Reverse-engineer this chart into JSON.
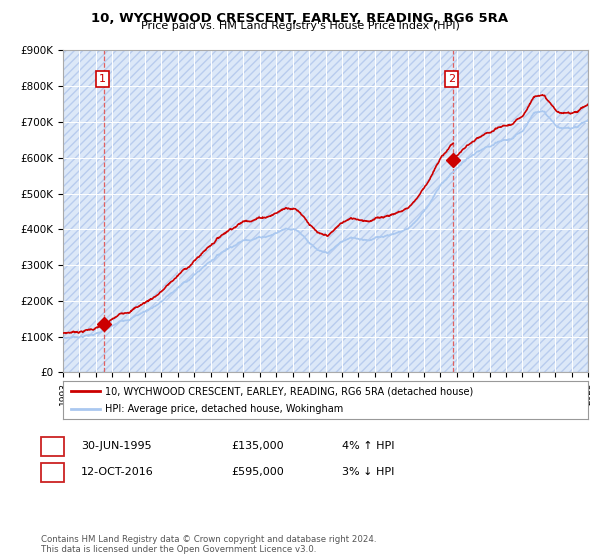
{
  "title": "10, WYCHWOOD CRESCENT, EARLEY, READING, RG6 5RA",
  "subtitle": "Price paid vs. HM Land Registry's House Price Index (HPI)",
  "ylim": [
    0,
    900000
  ],
  "yticks": [
    0,
    100000,
    200000,
    300000,
    400000,
    500000,
    600000,
    700000,
    800000,
    900000
  ],
  "ytick_labels": [
    "£0",
    "£100K",
    "£200K",
    "£300K",
    "£400K",
    "£500K",
    "£600K",
    "£700K",
    "£800K",
    "£900K"
  ],
  "sale1_year": 1995.5,
  "sale1_price": 135000,
  "sale2_year": 2016.79,
  "sale2_price": 595000,
  "hpi_color": "#aac8f0",
  "sale_color": "#cc0000",
  "vline_color": "#e06060",
  "legend_label1": "10, WYCHWOOD CRESCENT, EARLEY, READING, RG6 5RA (detached house)",
  "legend_label2": "HPI: Average price, detached house, Wokingham",
  "annotation1": [
    "1",
    "30-JUN-1995",
    "£135,000",
    "4% ↑ HPI"
  ],
  "annotation2": [
    "2",
    "12-OCT-2016",
    "£595,000",
    "3% ↓ HPI"
  ],
  "footer": "Contains HM Land Registry data © Crown copyright and database right 2024.\nThis data is licensed under the Open Government Licence v3.0.",
  "bg_color": "#ffffff",
  "plot_bg": "#dce8f8",
  "grid_color": "#ffffff"
}
